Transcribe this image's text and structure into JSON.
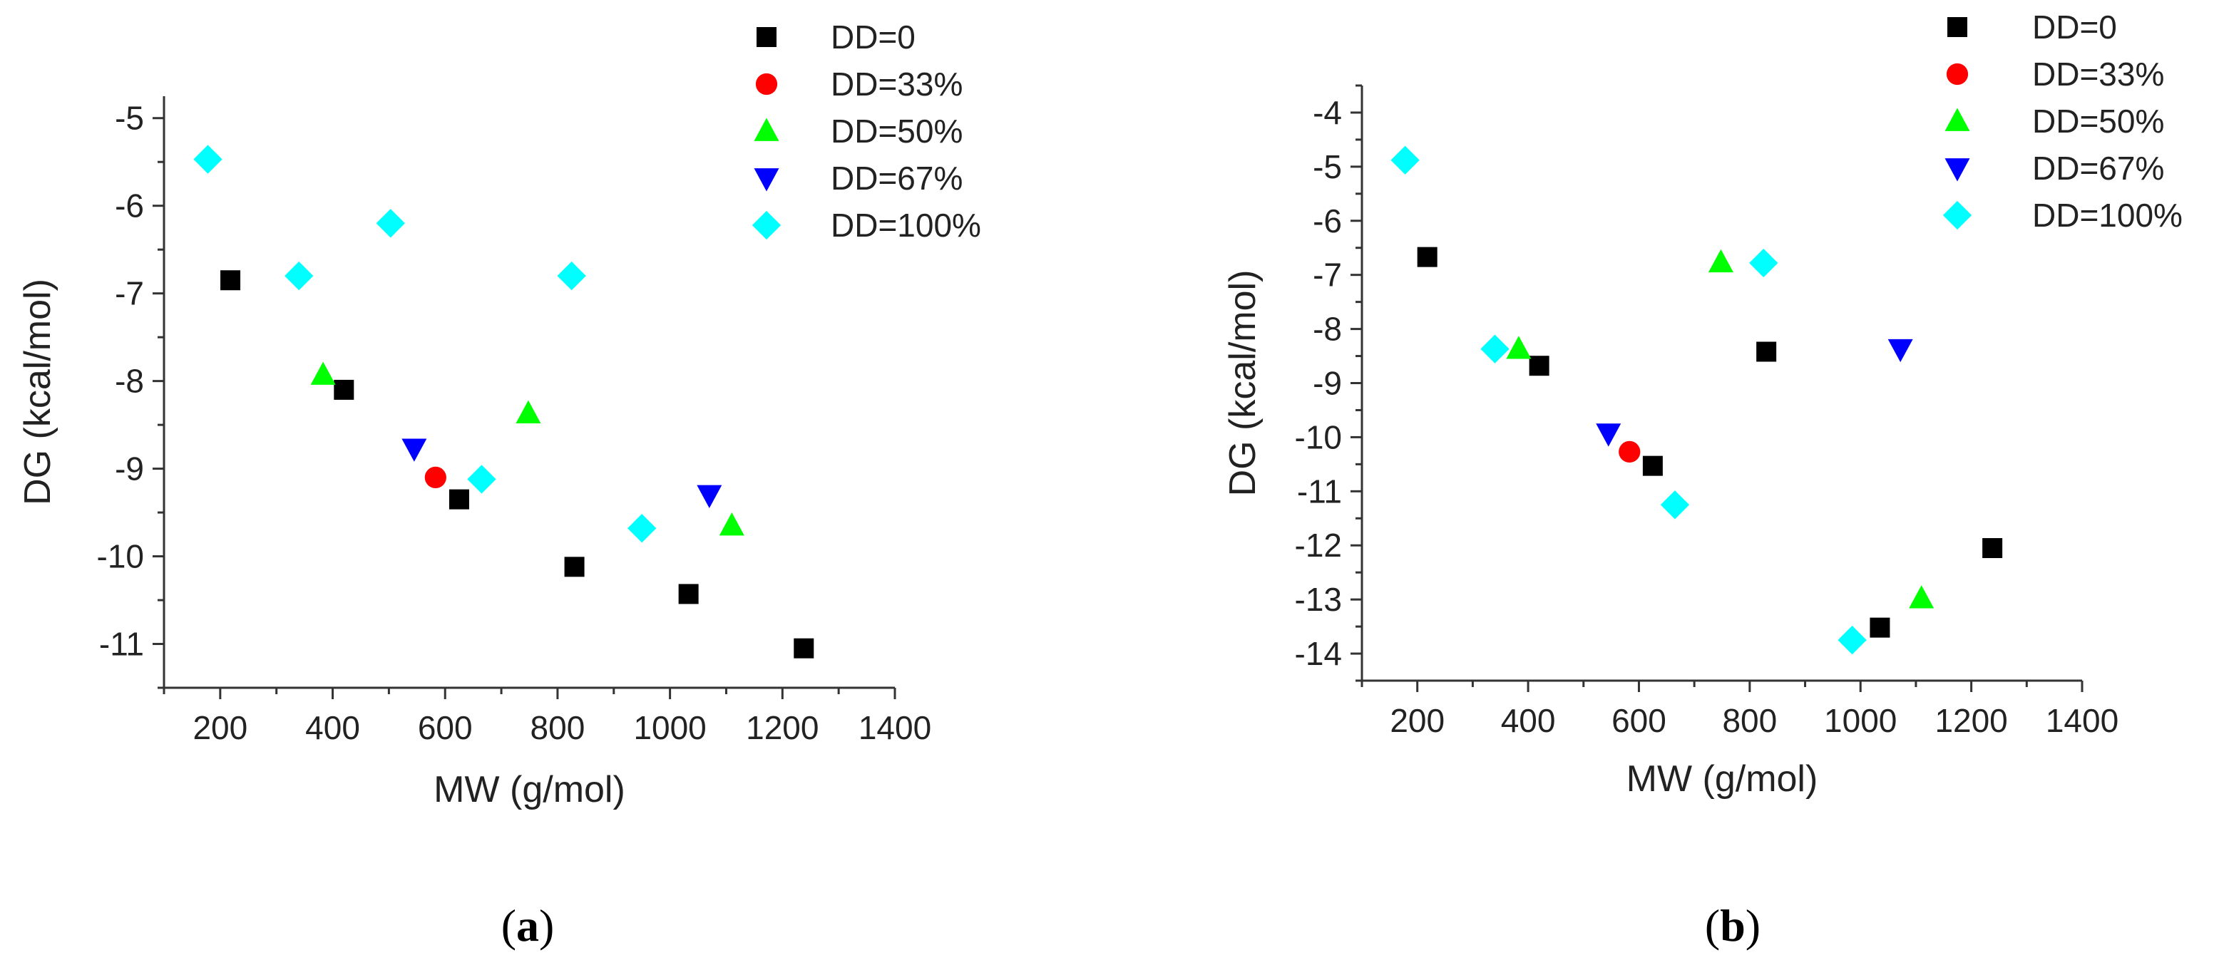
{
  "colors": {
    "DD=0": "#000000",
    "DD=33%": "#ff0000",
    "DD=50%": "#00ff00",
    "DD=67%": "#0000ff",
    "DD=100%": "#00ffff"
  },
  "chart_data": [
    {
      "type": "scatter",
      "panel_label": "(a)",
      "xlabel": "MW (g/mol)",
      "ylabel": "DG (kcal/mol)",
      "xlim": [
        100,
        1400
      ],
      "ylim": [
        -11.5,
        -4.75
      ],
      "xticks": [
        200,
        400,
        600,
        800,
        1000,
        1200,
        1400
      ],
      "xtick_labels": [
        "200",
        "400",
        "600",
        "800",
        "1000",
        "1200",
        "1400"
      ],
      "yticks": [
        -11,
        -10,
        -9,
        -8,
        -7,
        -6,
        -5
      ],
      "ytick_labels": [
        "-11",
        "-10",
        "-9",
        "-8",
        "-7",
        "-6",
        "-5"
      ],
      "legend_position": "top-right",
      "series": [
        {
          "name": "DD=0",
          "marker": "square",
          "x": [
            218,
            420,
            625,
            830,
            1033,
            1238
          ],
          "y": [
            -6.85,
            -8.1,
            -9.35,
            -10.12,
            -10.43,
            -11.05
          ]
        },
        {
          "name": "DD=33%",
          "marker": "circle",
          "x": [
            583
          ],
          "y": [
            -9.1
          ]
        },
        {
          "name": "DD=50%",
          "marker": "triangle-up",
          "x": [
            383,
            748,
            1110
          ],
          "y": [
            -7.93,
            -8.37,
            -9.65
          ]
        },
        {
          "name": "DD=67%",
          "marker": "triangle-down",
          "x": [
            545,
            1070
          ],
          "y": [
            -8.77,
            -9.3
          ]
        },
        {
          "name": "DD=100%",
          "marker": "diamond",
          "x": [
            178,
            340,
            503,
            665,
            825,
            950
          ],
          "y": [
            -5.47,
            -6.8,
            -6.2,
            -9.12,
            -6.8,
            -9.68
          ]
        }
      ]
    },
    {
      "type": "scatter",
      "panel_label": "(b)",
      "xlabel": "MW (g/mol)",
      "ylabel": "DG (kcal/mol)",
      "xlim": [
        100,
        1400
      ],
      "ylim": [
        -14.5,
        -3.5
      ],
      "xticks": [
        200,
        400,
        600,
        800,
        1000,
        1200,
        1400
      ],
      "xtick_labels": [
        "200",
        "400",
        "600",
        "800",
        "1000",
        "1200",
        "1400"
      ],
      "yticks": [
        -14,
        -13,
        -12,
        -11,
        -10,
        -9,
        -8,
        -7,
        -6,
        -5,
        -4
      ],
      "ytick_labels": [
        "-14",
        "-13",
        "-12",
        "-11",
        "-10",
        "-9",
        "-8",
        "-7",
        "-6",
        "-5",
        "-4"
      ],
      "legend_position": "top-right",
      "series": [
        {
          "name": "DD=0",
          "marker": "square",
          "x": [
            218,
            420,
            625,
            830,
            1035,
            1238
          ],
          "y": [
            -6.67,
            -8.68,
            -10.53,
            -8.42,
            -13.52,
            -12.05
          ]
        },
        {
          "name": "DD=33%",
          "marker": "circle",
          "x": [
            583
          ],
          "y": [
            -10.27
          ]
        },
        {
          "name": "DD=50%",
          "marker": "triangle-up",
          "x": [
            383,
            748,
            1110
          ],
          "y": [
            -8.37,
            -6.77,
            -12.98
          ]
        },
        {
          "name": "DD=67%",
          "marker": "triangle-down",
          "x": [
            545,
            1072
          ],
          "y": [
            -9.93,
            -8.37
          ]
        },
        {
          "name": "DD=100%",
          "marker": "diamond",
          "x": [
            178,
            340,
            665,
            825,
            985
          ],
          "y": [
            -4.88,
            -8.37,
            -11.25,
            -6.78,
            -13.75
          ]
        }
      ]
    }
  ]
}
